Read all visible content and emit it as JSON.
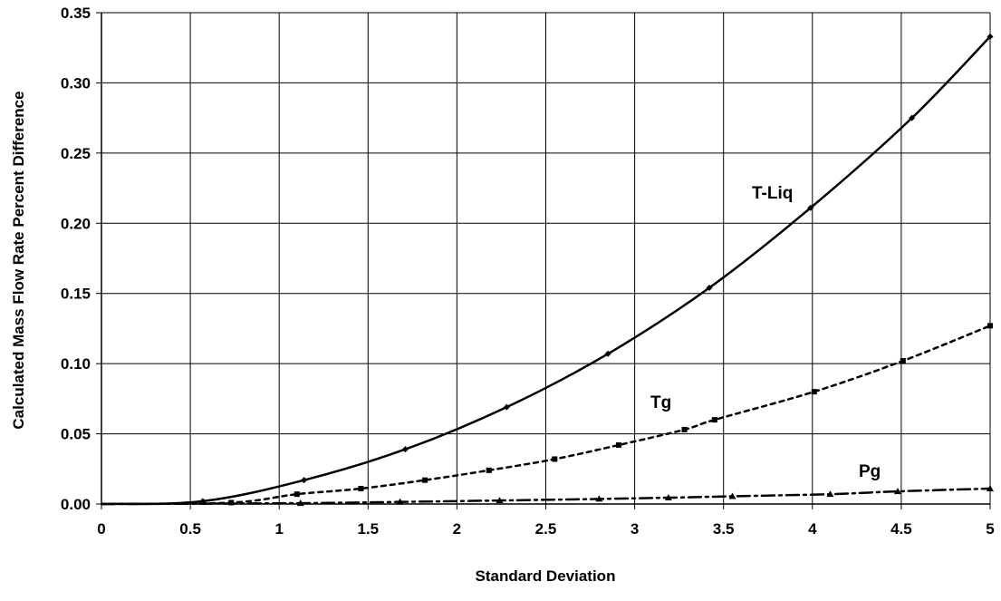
{
  "chart_data": {
    "type": "line",
    "title": "",
    "xlabel": "Standard Deviation",
    "ylabel": "Calculated Mass Flow Rate Percent Difference",
    "xlim": [
      0,
      5
    ],
    "ylim": [
      0,
      0.35
    ],
    "grid": true,
    "x_ticks": [
      "0",
      "0.5",
      "1",
      "1.5",
      "2",
      "2.5",
      "3",
      "3.5",
      "4",
      "4.5",
      "5"
    ],
    "y_ticks": [
      "0.00",
      "0.05",
      "0.10",
      "0.15",
      "0.20",
      "0.25",
      "0.30",
      "0.35"
    ],
    "series": [
      {
        "name": "T-Liq",
        "style": "solid",
        "marker": "diamond",
        "x": [
          0,
          0.57,
          1.14,
          1.71,
          2.28,
          2.85,
          3.42,
          3.99,
          4.56,
          5.0
        ],
        "y": [
          0.0,
          0.002,
          0.017,
          0.039,
          0.069,
          0.107,
          0.154,
          0.211,
          0.275,
          0.333
        ]
      },
      {
        "name": "Tg",
        "style": "dotted",
        "marker": "square",
        "x": [
          0,
          0.73,
          1.1,
          1.46,
          1.82,
          2.18,
          2.55,
          2.91,
          3.28,
          3.45,
          4.01,
          4.51,
          5.0
        ],
        "y": [
          0.0,
          0.001,
          0.007,
          0.011,
          0.017,
          0.024,
          0.032,
          0.042,
          0.053,
          0.06,
          0.08,
          0.102,
          0.127
        ]
      },
      {
        "name": "Pg",
        "style": "dash-dot",
        "marker": "triangle",
        "x": [
          0,
          1.12,
          1.68,
          2.24,
          2.8,
          3.19,
          3.55,
          4.1,
          4.48,
          5.0
        ],
        "y": [
          0.0,
          0.0006,
          0.0015,
          0.0025,
          0.0036,
          0.0045,
          0.0055,
          0.007,
          0.009,
          0.011
        ]
      }
    ]
  },
  "colors": {
    "line": "#000000",
    "grid": "#000000",
    "background": "#ffffff"
  }
}
